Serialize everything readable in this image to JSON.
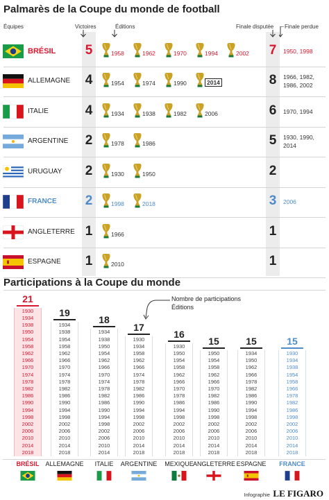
{
  "palmares": {
    "title": "Palmarès de la Coupe du monde de football",
    "headers": {
      "teams": "Équipes",
      "wins": "Victoires",
      "editions": "Éditions",
      "finals": "Finale disputée",
      "lost": "Finale perdue"
    },
    "rows": [
      {
        "team": "BRÉSIL",
        "wins": "5",
        "editions": [
          "1958",
          "1962",
          "1970",
          "1994",
          "2002"
        ],
        "finals": "7",
        "lost": "1950, 1998",
        "highlight": "red"
      },
      {
        "team": "ALLEMAGNE",
        "wins": "4",
        "editions": [
          "1954",
          "1974",
          "1990",
          "2014"
        ],
        "finals": "8",
        "lost": "1966, 1982,\n1986, 2002",
        "highlight": "none"
      },
      {
        "team": "ITALIE",
        "wins": "4",
        "editions": [
          "1934",
          "1938",
          "1982",
          "2006"
        ],
        "finals": "6",
        "lost": "1970, 1994",
        "highlight": "none"
      },
      {
        "team": "ARGENTINE",
        "wins": "2",
        "editions": [
          "1978",
          "1986"
        ],
        "finals": "5",
        "lost": "1930, 1990,\n2014",
        "highlight": "none"
      },
      {
        "team": "URUGUAY",
        "wins": "2",
        "editions": [
          "1930",
          "1950"
        ],
        "finals": "2",
        "lost": "",
        "highlight": "none"
      },
      {
        "team": "FRANCE",
        "wins": "2",
        "editions": [
          "1998",
          "2018"
        ],
        "finals": "3",
        "lost": "2006",
        "highlight": "blue"
      },
      {
        "team": "ANGLETERRE",
        "wins": "1",
        "editions": [
          "1966"
        ],
        "finals": "1",
        "lost": "",
        "highlight": "none"
      },
      {
        "team": "ESPAGNE",
        "wins": "1",
        "editions": [
          "2010"
        ],
        "finals": "1",
        "lost": "",
        "highlight": "none"
      }
    ]
  },
  "participations": {
    "title": "Participations à la Coupe du monde",
    "annotation_line1": "Nombre de participations",
    "annotation_line2": "Éditions",
    "columns": [
      {
        "team": "BRÉSIL",
        "count": "21",
        "highlight": "red",
        "years": [
          "1930",
          "1934",
          "1938",
          "1950",
          "1954",
          "1958",
          "1962",
          "1966",
          "1970",
          "1974",
          "1978",
          "1982",
          "1986",
          "1990",
          "1994",
          "1998",
          "2002",
          "2006",
          "2010",
          "2014",
          "2018"
        ]
      },
      {
        "team": "ALLEMAGNE",
        "count": "19",
        "highlight": "none",
        "years": [
          "1934",
          "1938",
          "1954",
          "1958",
          "1962",
          "1966",
          "1970",
          "1974",
          "1978",
          "1982",
          "1986",
          "1990",
          "1994",
          "1998",
          "2002",
          "2006",
          "2010",
          "2014",
          "2018"
        ]
      },
      {
        "team": "ITALIE",
        "count": "18",
        "highlight": "none",
        "years": [
          "1934",
          "1938",
          "1950",
          "1954",
          "1962",
          "1966",
          "1970",
          "1974",
          "1978",
          "1982",
          "1986",
          "1990",
          "1994",
          "1998",
          "2002",
          "2006",
          "2010",
          "2014"
        ]
      },
      {
        "team": "ARGENTINE",
        "count": "17",
        "highlight": "none",
        "years": [
          "1930",
          "1934",
          "1958",
          "1962",
          "1966",
          "1974",
          "1978",
          "1982",
          "1986",
          "1990",
          "1994",
          "1998",
          "2002",
          "2006",
          "2010",
          "2014",
          "2018"
        ]
      },
      {
        "team": "MEXIQUE",
        "count": "16",
        "highlight": "none",
        "years": [
          "1930",
          "1950",
          "1954",
          "1958",
          "1962",
          "1966",
          "1970",
          "1978",
          "1986",
          "1994",
          "1998",
          "2002",
          "2006",
          "2010",
          "2014",
          "2018"
        ]
      },
      {
        "team": "ANGLETERRE",
        "count": "15",
        "highlight": "none",
        "years": [
          "1950",
          "1954",
          "1958",
          "1962",
          "1966",
          "1970",
          "1982",
          "1986",
          "1990",
          "1998",
          "2002",
          "2006",
          "2010",
          "2014",
          "2018"
        ]
      },
      {
        "team": "ESPAGNE",
        "count": "15",
        "highlight": "none",
        "years": [
          "1934",
          "1950",
          "1962",
          "1966",
          "1978",
          "1982",
          "1986",
          "1990",
          "1994",
          "1998",
          "2002",
          "2006",
          "2010",
          "2014",
          "2018"
        ]
      },
      {
        "team": "FRANCE",
        "count": "15",
        "highlight": "blue",
        "years": [
          "1930",
          "1934",
          "1938",
          "1954",
          "1958",
          "1966",
          "1978",
          "1982",
          "1986",
          "1998",
          "2002",
          "2006",
          "2010",
          "2014",
          "2018"
        ]
      }
    ]
  },
  "credit": {
    "prefix": "Infographie",
    "brand": "LE FIGARO"
  },
  "colors": {
    "red": "#d7192f",
    "blue": "#4d8bc9",
    "shade": "#ececec",
    "trophy": "#c9a227"
  }
}
